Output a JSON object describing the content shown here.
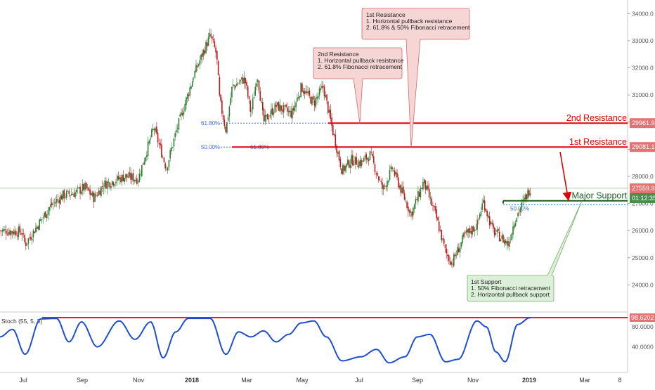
{
  "colors": {
    "candle_up": "#2e7d32",
    "candle_down": "#b71c1c",
    "resistance": "#e00000",
    "support": "#1b5e20",
    "fib": "#3b6fd8",
    "stoch": "#1f4fd1",
    "price_tag": "#e57373",
    "time_tag": "#4a8c4a",
    "note_red_bg": "#f6d5d5",
    "note_red_border": "#d46a6a",
    "note_green_bg": "#dcefd8",
    "note_green_border": "#7aae6f"
  },
  "chart_data": {
    "type": "candlestick",
    "y_axis": {
      "range": [
        23000,
        34500
      ],
      "ticks": [
        24000,
        25000,
        26000,
        27000,
        28000,
        29000,
        30000,
        31000,
        32000,
        33000,
        34000
      ],
      "tick_labels": [
        "24000.0",
        "25000.0",
        "26000.0",
        "27000.0",
        "28000.0",
        "29000.0",
        "30000.0",
        "31000.0",
        "32000.0",
        "33000.0",
        "34000.0"
      ]
    },
    "x_axis": {
      "labels": [
        "Jul",
        "Sep",
        "Nov",
        "2018",
        "Mar",
        "May",
        "Jul",
        "Sep",
        "Nov",
        "2019",
        "Mar",
        "8"
      ],
      "bold_labels": [
        "2018",
        "2019"
      ]
    },
    "price_path": [
      {
        "t": 0,
        "v": 26000
      },
      {
        "t": 0.035,
        "v": 25950
      },
      {
        "t": 0.04,
        "v": 25500
      },
      {
        "t": 0.08,
        "v": 26900
      },
      {
        "t": 0.1,
        "v": 27300
      },
      {
        "t": 0.12,
        "v": 27400
      },
      {
        "t": 0.135,
        "v": 27600
      },
      {
        "t": 0.15,
        "v": 27200
      },
      {
        "t": 0.165,
        "v": 27700
      },
      {
        "t": 0.2,
        "v": 28000
      },
      {
        "t": 0.22,
        "v": 27900
      },
      {
        "t": 0.245,
        "v": 29800
      },
      {
        "t": 0.265,
        "v": 28300
      },
      {
        "t": 0.28,
        "v": 29600
      },
      {
        "t": 0.31,
        "v": 31800
      },
      {
        "t": 0.335,
        "v": 33200
      },
      {
        "t": 0.345,
        "v": 32500
      },
      {
        "t": 0.35,
        "v": 30800
      },
      {
        "t": 0.36,
        "v": 29700
      },
      {
        "t": 0.37,
        "v": 31300
      },
      {
        "t": 0.39,
        "v": 31600
      },
      {
        "t": 0.4,
        "v": 30300
      },
      {
        "t": 0.41,
        "v": 31800
      },
      {
        "t": 0.42,
        "v": 30000
      },
      {
        "t": 0.44,
        "v": 30600
      },
      {
        "t": 0.465,
        "v": 30300
      },
      {
        "t": 0.48,
        "v": 31300
      },
      {
        "t": 0.5,
        "v": 30700
      },
      {
        "t": 0.515,
        "v": 31300
      },
      {
        "t": 0.53,
        "v": 29700
      },
      {
        "t": 0.545,
        "v": 28200
      },
      {
        "t": 0.56,
        "v": 28600
      },
      {
        "t": 0.575,
        "v": 28500
      },
      {
        "t": 0.59,
        "v": 28800
      },
      {
        "t": 0.61,
        "v": 27500
      },
      {
        "t": 0.625,
        "v": 28300
      },
      {
        "t": 0.655,
        "v": 26600
      },
      {
        "t": 0.675,
        "v": 27800
      },
      {
        "t": 0.695,
        "v": 26500
      },
      {
        "t": 0.71,
        "v": 25200
      },
      {
        "t": 0.72,
        "v": 24800
      },
      {
        "t": 0.74,
        "v": 25800
      },
      {
        "t": 0.76,
        "v": 26200
      },
      {
        "t": 0.77,
        "v": 27100
      },
      {
        "t": 0.785,
        "v": 26000
      },
      {
        "t": 0.81,
        "v": 25500
      },
      {
        "t": 0.82,
        "v": 26400
      },
      {
        "t": 0.835,
        "v": 27100
      },
      {
        "t": 0.845,
        "v": 27559.9
      }
    ],
    "horizontal_levels": [
      {
        "id": "r2",
        "value": 29961.9,
        "label": "2nd Resistance",
        "tag": "29961.9"
      },
      {
        "id": "r1",
        "value": 29081.1,
        "label": "1st Resistance",
        "tag": "29081.1"
      },
      {
        "id": "support",
        "value": 27100,
        "label": "Major Support"
      }
    ],
    "fibonacci": [
      {
        "label": "61.80%",
        "value": 29961.9
      },
      {
        "label": "50.00%",
        "value": 29081.1
      },
      {
        "label": "61.80%",
        "value": 29081.1
      },
      {
        "label": "50.00%",
        "value": 26950
      }
    ],
    "last_price": {
      "value": 27559.9,
      "tag": "27559.9",
      "countdown": "01:12:35"
    },
    "annotations": [
      {
        "id": "note-1st-resistance",
        "title": "1st Resistance",
        "lines": [
          "1. Horizontal pullback resistance",
          "2. 61.8% & 50% Fibonacci retracement"
        ]
      },
      {
        "id": "note-2nd-resistance",
        "title": "2nd Resistance",
        "lines": [
          "1. Horizontal pullback resistance",
          "2. 61.8% Fibonacci retracement"
        ]
      },
      {
        "id": "note-1st-support",
        "title": "1st Support",
        "lines": [
          "1. 50% Fibonacci retracement",
          "2. Horizontal pullback support"
        ]
      }
    ],
    "stochastic": {
      "label": "Stoch (55, 5, 3)",
      "range": [
        0,
        100
      ],
      "ticks": [
        40,
        80
      ],
      "tick_labels": [
        "40.0000",
        "80.0000"
      ],
      "last_value": 98.6202,
      "last_tag": "98.6202",
      "path": [
        {
          "t": 0,
          "v": 60
        },
        {
          "t": 0.02,
          "v": 75
        },
        {
          "t": 0.04,
          "v": 25
        },
        {
          "t": 0.065,
          "v": 96
        },
        {
          "t": 0.09,
          "v": 97
        },
        {
          "t": 0.11,
          "v": 50
        },
        {
          "t": 0.13,
          "v": 90
        },
        {
          "t": 0.155,
          "v": 40
        },
        {
          "t": 0.19,
          "v": 92
        },
        {
          "t": 0.215,
          "v": 55
        },
        {
          "t": 0.24,
          "v": 90
        },
        {
          "t": 0.26,
          "v": 18
        },
        {
          "t": 0.28,
          "v": 70
        },
        {
          "t": 0.3,
          "v": 97
        },
        {
          "t": 0.335,
          "v": 97
        },
        {
          "t": 0.36,
          "v": 25
        },
        {
          "t": 0.38,
          "v": 70
        },
        {
          "t": 0.4,
          "v": 60
        },
        {
          "t": 0.42,
          "v": 72
        },
        {
          "t": 0.44,
          "v": 50
        },
        {
          "t": 0.46,
          "v": 65
        },
        {
          "t": 0.48,
          "v": 88
        },
        {
          "t": 0.5,
          "v": 92
        },
        {
          "t": 0.52,
          "v": 60
        },
        {
          "t": 0.545,
          "v": 12
        },
        {
          "t": 0.575,
          "v": 20
        },
        {
          "t": 0.6,
          "v": 35
        },
        {
          "t": 0.62,
          "v": 8
        },
        {
          "t": 0.645,
          "v": 20
        },
        {
          "t": 0.665,
          "v": 60
        },
        {
          "t": 0.685,
          "v": 65
        },
        {
          "t": 0.71,
          "v": 10
        },
        {
          "t": 0.73,
          "v": 15
        },
        {
          "t": 0.76,
          "v": 92
        },
        {
          "t": 0.775,
          "v": 80
        },
        {
          "t": 0.79,
          "v": 30
        },
        {
          "t": 0.805,
          "v": 10
        },
        {
          "t": 0.825,
          "v": 85
        },
        {
          "t": 0.845,
          "v": 98.6
        }
      ]
    }
  }
}
